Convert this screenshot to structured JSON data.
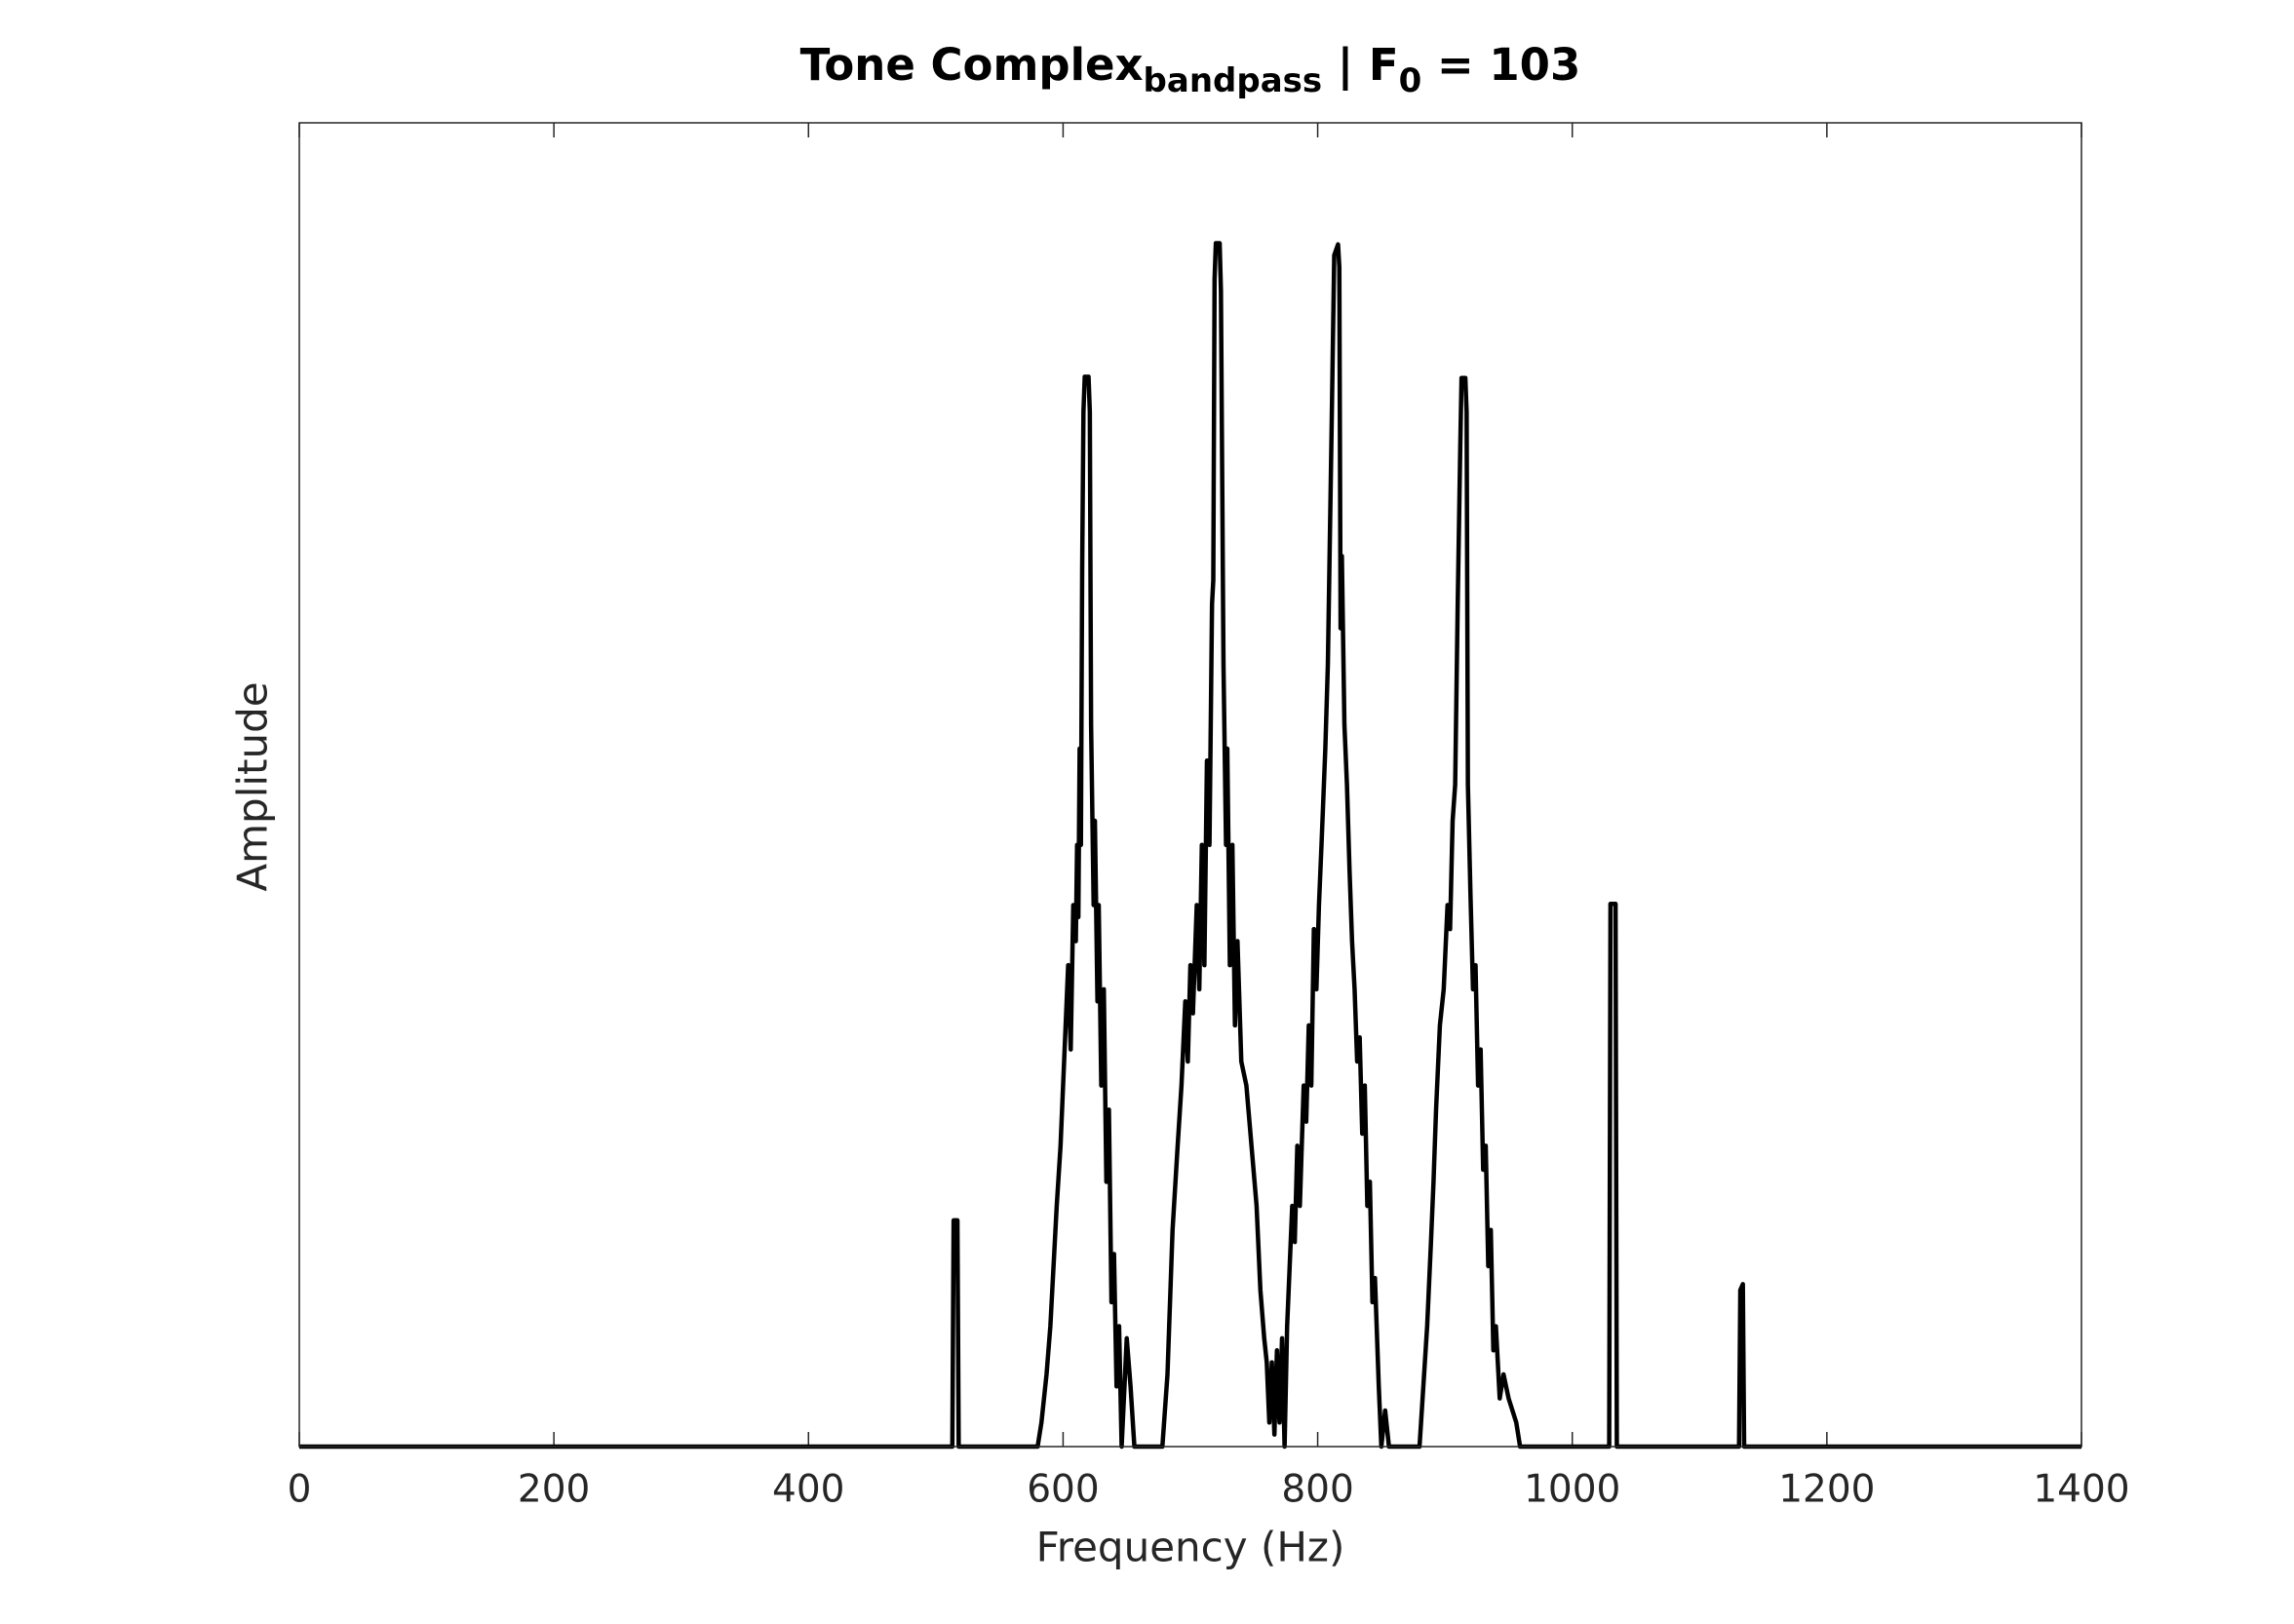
{
  "chart_data": {
    "type": "line",
    "title": {
      "main": "Tone Complex",
      "main_sub": "bandpass",
      "mid": " | F",
      "mid_sub": "0",
      "end": " = 103"
    },
    "xlabel": "Frequency (Hz)",
    "ylabel": "Amplitude",
    "xlim": [
      0,
      1400
    ],
    "xticks": [
      0,
      200,
      400,
      600,
      800,
      1000,
      1200,
      1400
    ],
    "ylim": [
      0,
      1.1
    ],
    "yticks": [],
    "color": "#000000",
    "grid": false,
    "x": [
      0,
      513,
      514,
      517,
      518,
      580,
      583,
      587,
      590,
      595,
      598,
      600,
      604,
      606,
      608,
      610,
      611,
      612,
      613,
      614,
      615,
      616,
      617,
      620,
      621,
      622,
      624,
      625,
      627,
      628,
      630,
      632,
      634,
      636,
      638,
      640,
      642,
      644,
      646,
      650,
      653,
      656,
      678,
      682,
      686,
      690,
      693,
      696,
      698,
      700,
      702,
      705,
      707,
      709,
      711,
      713,
      715,
      717,
      718,
      719,
      720,
      723,
      724,
      726,
      728,
      729,
      731,
      733,
      735,
      737,
      740,
      744,
      748,
      752,
      755,
      758,
      760,
      762,
      764,
      766,
      768,
      770,
      772,
      774,
      776,
      778,
      780,
      782,
      784,
      786,
      789,
      791,
      793,
      795,
      797,
      799,
      801,
      803,
      806,
      808,
      811,
      813,
      816,
      817,
      818,
      819,
      821,
      823,
      825,
      827,
      829,
      831,
      833,
      835,
      837,
      839,
      841,
      843,
      845,
      848,
      850,
      853,
      856,
      880,
      883,
      886,
      889,
      891,
      893,
      896,
      899,
      902,
      904,
      906,
      908,
      910,
      912,
      913,
      916,
      917,
      918,
      920,
      922,
      924,
      926,
      928,
      930,
      932,
      934,
      936,
      938,
      940,
      943,
      946,
      950,
      956,
      959,
      1029,
      1030,
      1034,
      1035,
      1131,
      1132,
      1134,
      1135,
      1400
    ],
    "values": [
      0,
      0,
      0.188,
      0.188,
      0,
      0,
      0.02,
      0.06,
      0.1,
      0.2,
      0.25,
      0.3,
      0.4,
      0.33,
      0.45,
      0.42,
      0.5,
      0.44,
      0.58,
      0.5,
      0.73,
      0.86,
      0.889,
      0.889,
      0.86,
      0.6,
      0.45,
      0.52,
      0.37,
      0.45,
      0.3,
      0.38,
      0.22,
      0.28,
      0.12,
      0.16,
      0.05,
      0.1,
      0,
      0.09,
      0.05,
      0,
      0,
      0.06,
      0.18,
      0.25,
      0.3,
      0.37,
      0.32,
      0.4,
      0.36,
      0.45,
      0.38,
      0.5,
      0.4,
      0.57,
      0.5,
      0.7,
      0.72,
      0.97,
      1.0,
      1.0,
      0.96,
      0.65,
      0.5,
      0.58,
      0.4,
      0.5,
      0.35,
      0.42,
      0.32,
      0.3,
      0.25,
      0.2,
      0.13,
      0.09,
      0.07,
      0.02,
      0.07,
      0.01,
      0.08,
      0.02,
      0.09,
      0,
      0.1,
      0.15,
      0.2,
      0.17,
      0.25,
      0.2,
      0.3,
      0.27,
      0.35,
      0.3,
      0.43,
      0.38,
      0.45,
      0.5,
      0.58,
      0.65,
      0.85,
      0.99,
      0.999,
      0.98,
      0.68,
      0.74,
      0.6,
      0.55,
      0.48,
      0.42,
      0.38,
      0.32,
      0.34,
      0.26,
      0.3,
      0.2,
      0.22,
      0.12,
      0.14,
      0.05,
      0,
      0.03,
      0,
      0,
      0.05,
      0.1,
      0.17,
      0.22,
      0.28,
      0.35,
      0.38,
      0.45,
      0.43,
      0.52,
      0.55,
      0.7,
      0.83,
      0.888,
      0.888,
      0.86,
      0.55,
      0.46,
      0.38,
      0.4,
      0.3,
      0.33,
      0.23,
      0.25,
      0.15,
      0.18,
      0.08,
      0.1,
      0.04,
      0.06,
      0.04,
      0.02,
      0,
      0,
      0.451,
      0.451,
      0,
      0,
      0.13,
      0.135,
      0,
      0
    ]
  }
}
